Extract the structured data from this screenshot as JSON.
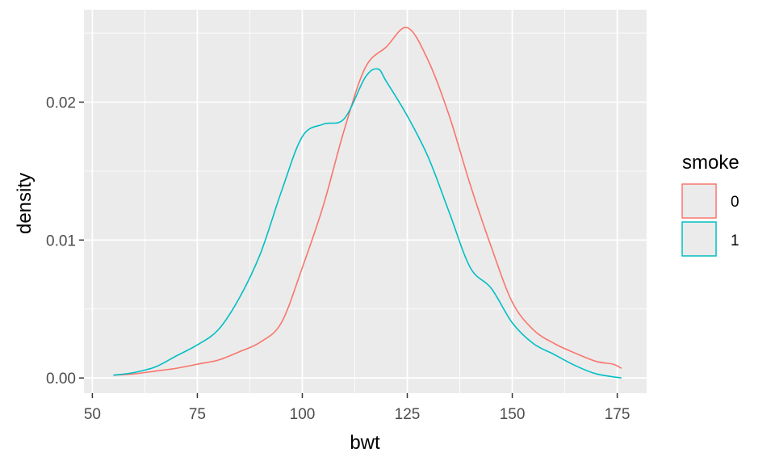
{
  "chart_data": {
    "type": "line",
    "title": "",
    "xlabel": "bwt",
    "ylabel": "density",
    "xlim": [
      48,
      182
    ],
    "ylim": [
      -0.0011,
      0.0267
    ],
    "x_ticks": [
      50,
      75,
      100,
      125,
      150,
      175
    ],
    "x_tick_labels": [
      "50",
      "75",
      "100",
      "125",
      "150",
      "175"
    ],
    "x_minor_ticks": [
      62.5,
      87.5,
      112.5,
      137.5,
      162.5
    ],
    "y_ticks": [
      0,
      0.01,
      0.02
    ],
    "y_tick_labels": [
      "0.00",
      "0.01",
      "0.02"
    ],
    "y_minor_ticks": [
      0.005,
      0.015,
      0.025
    ],
    "grid": true,
    "panel_background": "#ebebeb",
    "legend": {
      "title": "smoke",
      "position": "right",
      "entries": [
        {
          "label": "0",
          "color": "#F8766D"
        },
        {
          "label": "1",
          "color": "#00BFC4"
        }
      ]
    },
    "series": [
      {
        "name": "0",
        "color": "#F8766D",
        "points": [
          [
            55,
            0.0002
          ],
          [
            60,
            0.0003
          ],
          [
            65,
            0.0005
          ],
          [
            70,
            0.0007
          ],
          [
            75,
            0.001
          ],
          [
            80,
            0.0013
          ],
          [
            85,
            0.0019
          ],
          [
            90,
            0.0026
          ],
          [
            95,
            0.004
          ],
          [
            100,
            0.008
          ],
          [
            105,
            0.0125
          ],
          [
            110,
            0.018
          ],
          [
            115,
            0.0225
          ],
          [
            120,
            0.024
          ],
          [
            125,
            0.0254
          ],
          [
            130,
            0.023
          ],
          [
            135,
            0.019
          ],
          [
            140,
            0.014
          ],
          [
            145,
            0.0095
          ],
          [
            150,
            0.0055
          ],
          [
            155,
            0.0035
          ],
          [
            160,
            0.0025
          ],
          [
            165,
            0.0018
          ],
          [
            170,
            0.0012
          ],
          [
            174,
            0.001
          ],
          [
            176,
            0.0007
          ]
        ]
      },
      {
        "name": "1",
        "color": "#00BFC4",
        "points": [
          [
            55,
            0.0002
          ],
          [
            60,
            0.0004
          ],
          [
            65,
            0.0008
          ],
          [
            70,
            0.0016
          ],
          [
            75,
            0.0024
          ],
          [
            80,
            0.0035
          ],
          [
            85,
            0.0058
          ],
          [
            90,
            0.009
          ],
          [
            95,
            0.0135
          ],
          [
            100,
            0.0175
          ],
          [
            105,
            0.0184
          ],
          [
            110,
            0.0188
          ],
          [
            115,
            0.0218
          ],
          [
            118,
            0.0224
          ],
          [
            120,
            0.0215
          ],
          [
            125,
            0.019
          ],
          [
            130,
            0.016
          ],
          [
            135,
            0.012
          ],
          [
            140,
            0.008
          ],
          [
            145,
            0.0065
          ],
          [
            150,
            0.004
          ],
          [
            155,
            0.0025
          ],
          [
            160,
            0.0017
          ],
          [
            165,
            0.0009
          ],
          [
            170,
            0.0003
          ],
          [
            176,
            0.0
          ]
        ]
      }
    ]
  }
}
